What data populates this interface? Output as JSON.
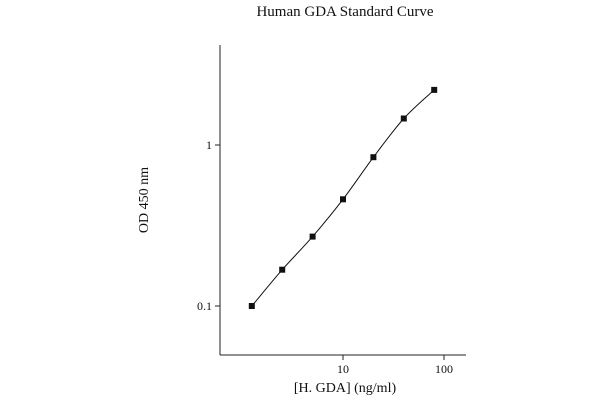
{
  "chart_data": {
    "type": "scatter",
    "title": "Human GDA Standard Curve",
    "xlabel": "[H. GDA] (ng/ml)",
    "ylabel": "OD 450 nm",
    "xscale": "log",
    "yscale": "log",
    "xlim": [
      1,
      100
    ],
    "ylim": [
      0.06,
      4.0
    ],
    "xticks": [
      {
        "value": 10,
        "label": "10"
      },
      {
        "value": 100,
        "label": "100"
      }
    ],
    "yticks": [
      {
        "value": 0.1,
        "label": "0.1"
      },
      {
        "value": 1,
        "label": "1"
      }
    ],
    "grid": false,
    "legend": "none",
    "series": [
      {
        "x": [
          1.25,
          2.5,
          5,
          10,
          20,
          40,
          80
        ],
        "y": [
          0.1,
          0.168,
          0.27,
          0.46,
          0.84,
          1.46,
          2.2
        ],
        "marker": "square",
        "fit": "smooth curve"
      }
    ]
  }
}
